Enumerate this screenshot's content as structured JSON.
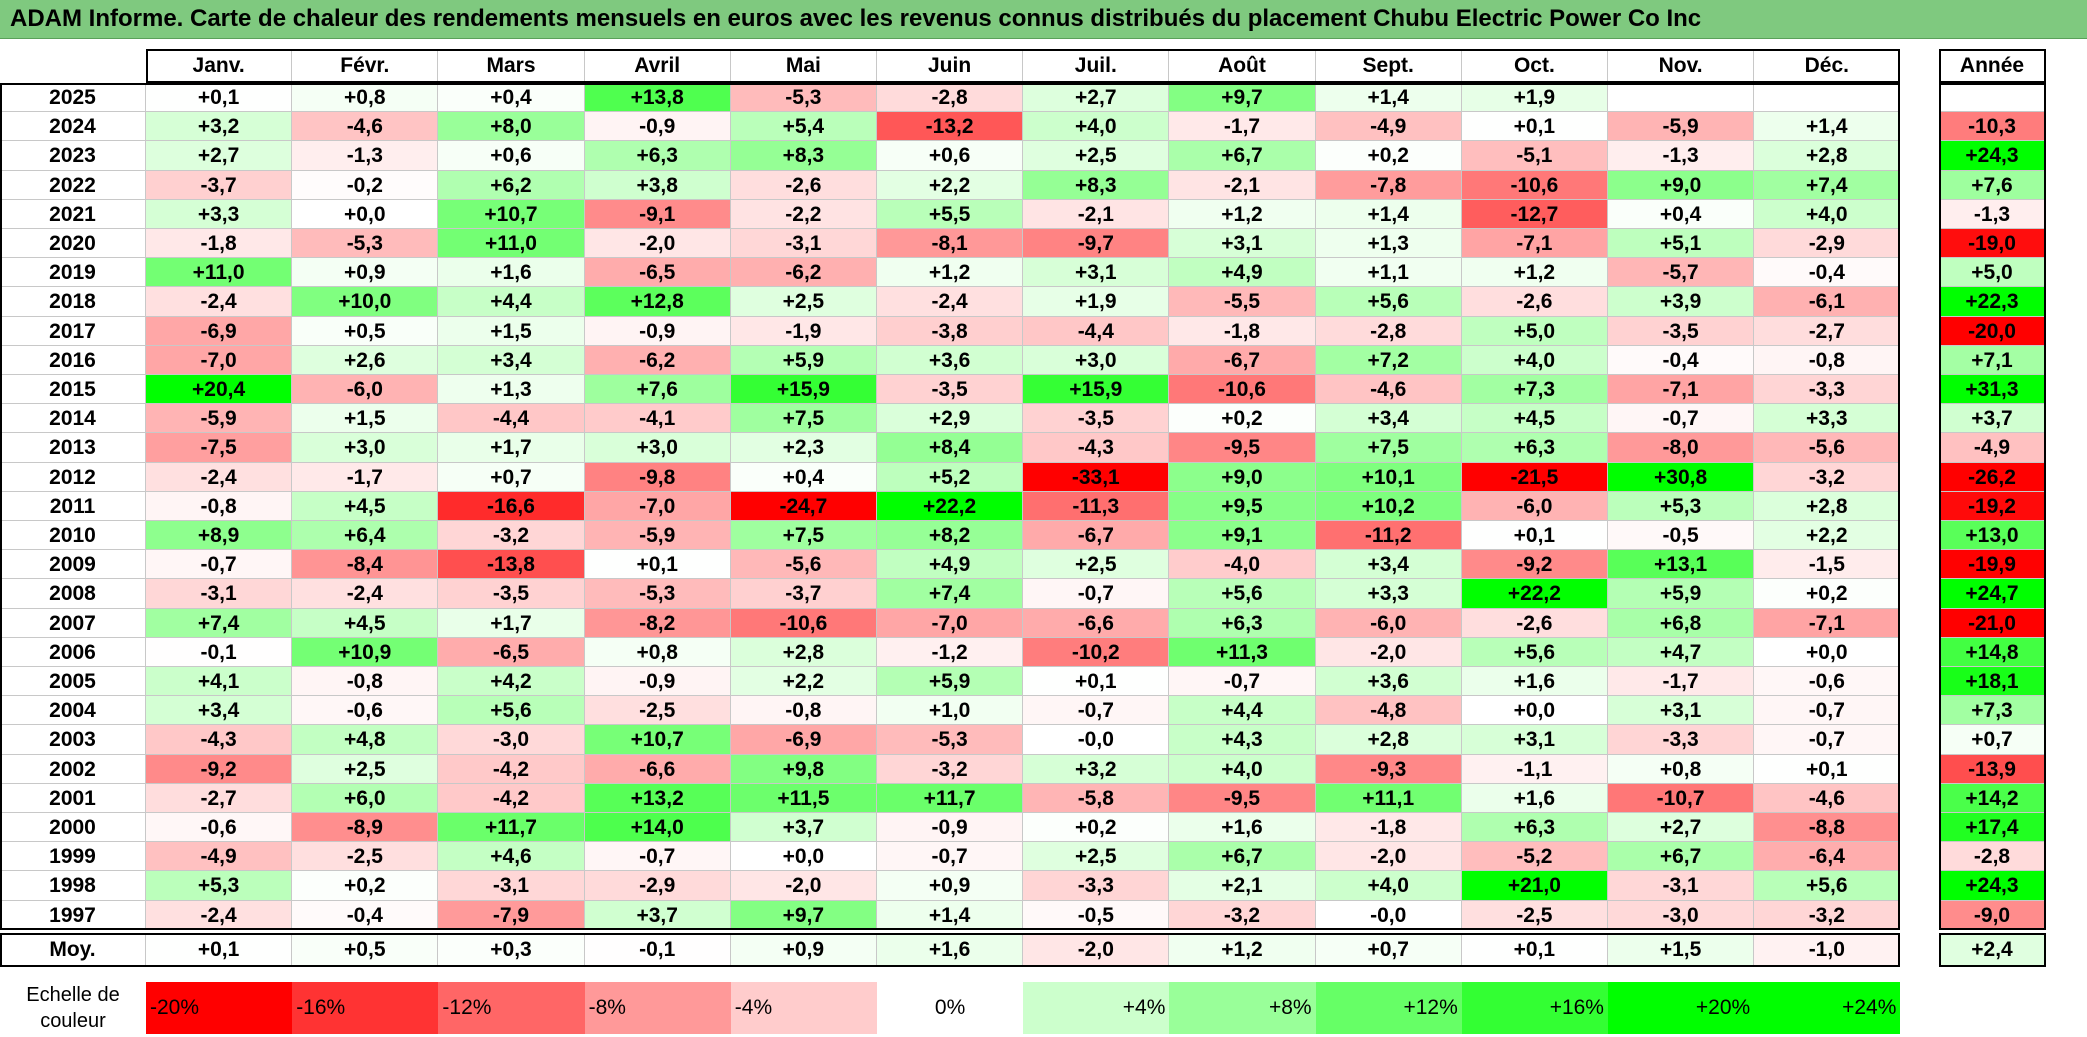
{
  "title": "ADAM Informe. Carte de chaleur des rendements mensuels en euros avec les revenus connus distribués du placement Chubu Electric Power Co Inc",
  "chart_data": {
    "type": "heatmap",
    "title": "ADAM Informe. Carte de chaleur des rendements mensuels en euros avec les revenus connus distribués du placement Chubu Electric Power Co Inc",
    "months": [
      "Janv.",
      "Févr.",
      "Mars",
      "Avril",
      "Mai",
      "Juin",
      "Juil.",
      "Août",
      "Sept.",
      "Oct.",
      "Nov.",
      "Déc."
    ],
    "year_col_label": "Année",
    "rows": [
      {
        "year": "2025",
        "values": [
          "+0,1",
          "+0,8",
          "+0,4",
          "+13,8",
          "-5,3",
          "-2,8",
          "+2,7",
          "+9,7",
          "+1,4",
          "+1,9",
          "",
          ""
        ],
        "annual": ""
      },
      {
        "year": "2024",
        "values": [
          "+3,2",
          "-4,6",
          "+8,0",
          "-0,9",
          "+5,4",
          "-13,2",
          "+4,0",
          "-1,7",
          "-4,9",
          "+0,1",
          "-5,9",
          "+1,4"
        ],
        "annual": "-10,3"
      },
      {
        "year": "2023",
        "values": [
          "+2,7",
          "-1,3",
          "+0,6",
          "+6,3",
          "+8,3",
          "+0,6",
          "+2,5",
          "+6,7",
          "+0,2",
          "-5,1",
          "-1,3",
          "+2,8"
        ],
        "annual": "+24,3"
      },
      {
        "year": "2022",
        "values": [
          "-3,7",
          "-0,2",
          "+6,2",
          "+3,8",
          "-2,6",
          "+2,2",
          "+8,3",
          "-2,1",
          "-7,8",
          "-10,6",
          "+9,0",
          "+7,4"
        ],
        "annual": "+7,6"
      },
      {
        "year": "2021",
        "values": [
          "+3,3",
          "+0,0",
          "+10,7",
          "-9,1",
          "-2,2",
          "+5,5",
          "-2,1",
          "+1,2",
          "+1,4",
          "-12,7",
          "+0,4",
          "+4,0"
        ],
        "annual": "-1,3"
      },
      {
        "year": "2020",
        "values": [
          "-1,8",
          "-5,3",
          "+11,0",
          "-2,0",
          "-3,1",
          "-8,1",
          "-9,7",
          "+3,1",
          "+1,3",
          "-7,1",
          "+5,1",
          "-2,9"
        ],
        "annual": "-19,0"
      },
      {
        "year": "2019",
        "values": [
          "+11,0",
          "+0,9",
          "+1,6",
          "-6,5",
          "-6,2",
          "+1,2",
          "+3,1",
          "+4,9",
          "+1,1",
          "+1,2",
          "-5,7",
          "-0,4"
        ],
        "annual": "+5,0"
      },
      {
        "year": "2018",
        "values": [
          "-2,4",
          "+10,0",
          "+4,4",
          "+12,8",
          "+2,5",
          "-2,4",
          "+1,9",
          "-5,5",
          "+5,6",
          "-2,6",
          "+3,9",
          "-6,1"
        ],
        "annual": "+22,3"
      },
      {
        "year": "2017",
        "values": [
          "-6,9",
          "+0,5",
          "+1,5",
          "-0,9",
          "-1,9",
          "-3,8",
          "-4,4",
          "-1,8",
          "-2,8",
          "+5,0",
          "-3,5",
          "-2,7"
        ],
        "annual": "-20,0"
      },
      {
        "year": "2016",
        "values": [
          "-7,0",
          "+2,6",
          "+3,4",
          "-6,2",
          "+5,9",
          "+3,6",
          "+3,0",
          "-6,7",
          "+7,2",
          "+4,0",
          "-0,4",
          "-0,8"
        ],
        "annual": "+7,1"
      },
      {
        "year": "2015",
        "values": [
          "+20,4",
          "-6,0",
          "+1,3",
          "+7,6",
          "+15,9",
          "-3,5",
          "+15,9",
          "-10,6",
          "-4,6",
          "+7,3",
          "-7,1",
          "-3,3"
        ],
        "annual": "+31,3"
      },
      {
        "year": "2014",
        "values": [
          "-5,9",
          "+1,5",
          "-4,4",
          "-4,1",
          "+7,5",
          "+2,9",
          "-3,5",
          "+0,2",
          "+3,4",
          "+4,5",
          "-0,7",
          "+3,3"
        ],
        "annual": "+3,7"
      },
      {
        "year": "2013",
        "values": [
          "-7,5",
          "+3,0",
          "+1,7",
          "+3,0",
          "+2,3",
          "+8,4",
          "-4,3",
          "-9,5",
          "+7,5",
          "+6,3",
          "-8,0",
          "-5,6"
        ],
        "annual": "-4,9"
      },
      {
        "year": "2012",
        "values": [
          "-2,4",
          "-1,7",
          "+0,7",
          "-9,8",
          "+0,4",
          "+5,2",
          "-33,1",
          "+9,0",
          "+10,1",
          "-21,5",
          "+30,8",
          "-3,2"
        ],
        "annual": "-26,2"
      },
      {
        "year": "2011",
        "values": [
          "-0,8",
          "+4,5",
          "-16,6",
          "-7,0",
          "-24,7",
          "+22,2",
          "-11,3",
          "+9,5",
          "+10,2",
          "-6,0",
          "+5,3",
          "+2,8"
        ],
        "annual": "-19,2"
      },
      {
        "year": "2010",
        "values": [
          "+8,9",
          "+6,4",
          "-3,2",
          "-5,9",
          "+7,5",
          "+8,2",
          "-6,7",
          "+9,1",
          "-11,2",
          "+0,1",
          "-0,5",
          "+2,2"
        ],
        "annual": "+13,0"
      },
      {
        "year": "2009",
        "values": [
          "-0,7",
          "-8,4",
          "-13,8",
          "+0,1",
          "-5,6",
          "+4,9",
          "+2,5",
          "-4,0",
          "+3,4",
          "-9,2",
          "+13,1",
          "-1,5"
        ],
        "annual": "-19,9"
      },
      {
        "year": "2008",
        "values": [
          "-3,1",
          "-2,4",
          "-3,5",
          "-5,3",
          "-3,7",
          "+7,4",
          "-0,7",
          "+5,6",
          "+3,3",
          "+22,2",
          "+5,9",
          "+0,2"
        ],
        "annual": "+24,7"
      },
      {
        "year": "2007",
        "values": [
          "+7,4",
          "+4,5",
          "+1,7",
          "-8,2",
          "-10,6",
          "-7,0",
          "-6,6",
          "+6,3",
          "-6,0",
          "-2,6",
          "+6,8",
          "-7,1"
        ],
        "annual": "-21,0"
      },
      {
        "year": "2006",
        "values": [
          "-0,1",
          "+10,9",
          "-6,5",
          "+0,8",
          "+2,8",
          "-1,2",
          "-10,2",
          "+11,3",
          "-2,0",
          "+5,6",
          "+4,7",
          "+0,0"
        ],
        "annual": "+14,8"
      },
      {
        "year": "2005",
        "values": [
          "+4,1",
          "-0,8",
          "+4,2",
          "-0,9",
          "+2,2",
          "+5,9",
          "+0,1",
          "-0,7",
          "+3,6",
          "+1,6",
          "-1,7",
          "-0,6"
        ],
        "annual": "+18,1"
      },
      {
        "year": "2004",
        "values": [
          "+3,4",
          "-0,6",
          "+5,6",
          "-2,5",
          "-0,8",
          "+1,0",
          "-0,7",
          "+4,4",
          "-4,8",
          "+0,0",
          "+3,1",
          "-0,7"
        ],
        "annual": "+7,3"
      },
      {
        "year": "2003",
        "values": [
          "-4,3",
          "+4,8",
          "-3,0",
          "+10,7",
          "-6,9",
          "-5,3",
          "-0,0",
          "+4,3",
          "+2,8",
          "+3,1",
          "-3,3",
          "-0,7"
        ],
        "annual": "+0,7"
      },
      {
        "year": "2002",
        "values": [
          "-9,2",
          "+2,5",
          "-4,2",
          "-6,6",
          "+9,8",
          "-3,2",
          "+3,2",
          "+4,0",
          "-9,3",
          "-1,1",
          "+0,8",
          "+0,1"
        ],
        "annual": "-13,9"
      },
      {
        "year": "2001",
        "values": [
          "-2,7",
          "+6,0",
          "-4,2",
          "+13,2",
          "+11,5",
          "+11,7",
          "-5,8",
          "-9,5",
          "+11,1",
          "+1,6",
          "-10,7",
          "-4,6"
        ],
        "annual": "+14,2"
      },
      {
        "year": "2000",
        "values": [
          "-0,6",
          "-8,9",
          "+11,7",
          "+14,0",
          "+3,7",
          "-0,9",
          "+0,2",
          "+1,6",
          "-1,8",
          "+6,3",
          "+2,7",
          "-8,8"
        ],
        "annual": "+17,4"
      },
      {
        "year": "1999",
        "values": [
          "-4,9",
          "-2,5",
          "+4,6",
          "-0,7",
          "+0,0",
          "-0,7",
          "+2,5",
          "+6,7",
          "-2,0",
          "-5,2",
          "+6,7",
          "-6,4"
        ],
        "annual": "-2,8"
      },
      {
        "year": "1998",
        "values": [
          "+5,3",
          "+0,2",
          "-3,1",
          "-2,9",
          "-2,0",
          "+0,9",
          "-3,3",
          "+2,1",
          "+4,0",
          "+21,0",
          "-3,1",
          "+5,6"
        ],
        "annual": "+24,3"
      },
      {
        "year": "1997",
        "values": [
          "-2,4",
          "-0,4",
          "-7,9",
          "+3,7",
          "+9,7",
          "+1,4",
          "-0,5",
          "-3,2",
          "-0,0",
          "-2,5",
          "-3,0",
          "-3,2"
        ],
        "annual": "-9,0"
      }
    ],
    "average": {
      "label": "Moy.",
      "values": [
        "+0,1",
        "+0,5",
        "+0,3",
        "-0,1",
        "+0,9",
        "+1,6",
        "-2,0",
        "+1,2",
        "+0,7",
        "+0,1",
        "+1,5",
        "-1,0"
      ],
      "annual": "+2,4"
    },
    "color_scale": {
      "label": "Echelle de couleur",
      "stops": [
        {
          "label": "-20%",
          "value": -20,
          "color": "#ff0000"
        },
        {
          "label": "-16%",
          "value": -16,
          "color": "#ff3333"
        },
        {
          "label": "-12%",
          "value": -12,
          "color": "#ff6666"
        },
        {
          "label": "-8%",
          "value": -8,
          "color": "#ff9999"
        },
        {
          "label": "-4%",
          "value": -4,
          "color": "#ffcccc"
        },
        {
          "label": "0%",
          "value": 0,
          "color": "#ffffff"
        },
        {
          "label": "+4%",
          "value": 4,
          "color": "#ccffcc"
        },
        {
          "label": "+8%",
          "value": 8,
          "color": "#99ff99"
        },
        {
          "label": "+12%",
          "value": 12,
          "color": "#66ff66"
        },
        {
          "label": "+16%",
          "value": 16,
          "color": "#33ff33"
        },
        {
          "label": "+20%",
          "value": 20,
          "color": "#00ff00"
        },
        {
          "label": "+24%",
          "value": 24,
          "color": "#00ff00"
        }
      ]
    }
  }
}
